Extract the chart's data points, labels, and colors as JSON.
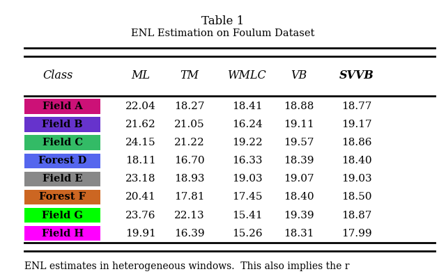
{
  "title_line1": "Table 1",
  "title_line2": "ENL Estimation on Foulum Dataset",
  "title_line2_display": "ENL Estimation on Foulum Dataset",
  "columns": [
    "Class",
    "ML",
    "TM",
    "WMLC",
    "VB",
    "SVVB"
  ],
  "rows": [
    {
      "label": "Field A",
      "color": "#CC1177",
      "values": [
        "22.04",
        "18.27",
        "18.41",
        "18.88",
        "18.77"
      ]
    },
    {
      "label": "Field B",
      "color": "#6633CC",
      "values": [
        "21.62",
        "21.05",
        "16.24",
        "19.11",
        "19.17"
      ]
    },
    {
      "label": "Field C",
      "color": "#33BB66",
      "values": [
        "24.15",
        "21.22",
        "19.22",
        "19.57",
        "18.86"
      ]
    },
    {
      "label": "Forest D",
      "color": "#5566EE",
      "values": [
        "18.11",
        "16.70",
        "16.33",
        "18.39",
        "18.40"
      ]
    },
    {
      "label": "Field E",
      "color": "#888888",
      "values": [
        "23.18",
        "18.93",
        "19.03",
        "19.07",
        "19.03"
      ]
    },
    {
      "label": "Forest F",
      "color": "#CC6622",
      "values": [
        "20.41",
        "17.81",
        "17.45",
        "18.40",
        "18.50"
      ]
    },
    {
      "label": "Field G",
      "color": "#00FF00",
      "values": [
        "23.76",
        "22.13",
        "15.41",
        "19.39",
        "18.87"
      ]
    },
    {
      "label": "Field H",
      "color": "#FF00FF",
      "values": [
        "19.91",
        "16.39",
        "15.26",
        "18.31",
        "17.99"
      ]
    }
  ],
  "footer_text": "ENL estimates in heterogeneous windows.  This also implies the r",
  "bg_color": "#ffffff"
}
